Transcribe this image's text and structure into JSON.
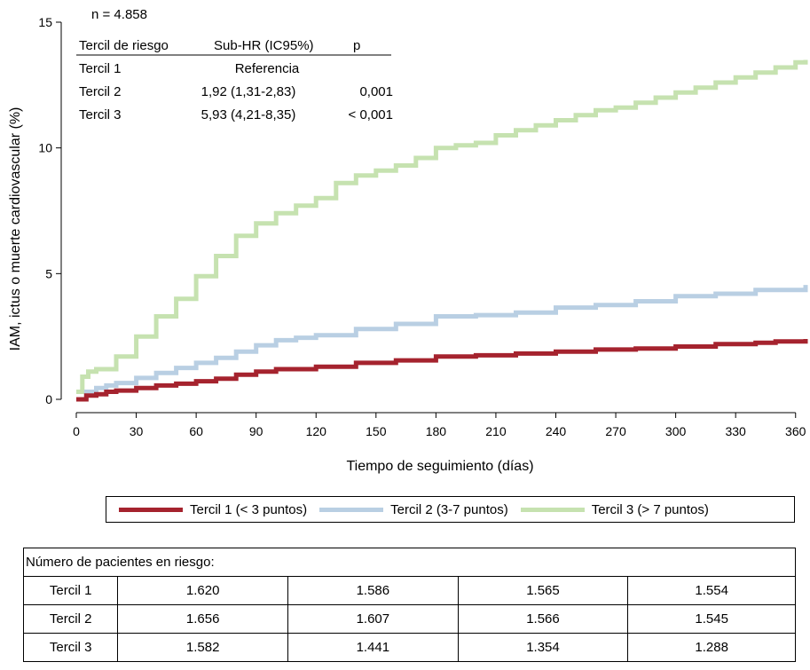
{
  "chart_data": {
    "type": "line",
    "title": "",
    "xlabel": "Tiempo de seguimiento (días)",
    "ylabel": "IAM, ictus o muerte cardiovascular (%)",
    "xlim": [
      0,
      365
    ],
    "ylim": [
      0,
      15
    ],
    "xticks": [
      0,
      30,
      60,
      90,
      120,
      150,
      180,
      210,
      240,
      270,
      300,
      330,
      360
    ],
    "yticks": [
      0,
      5,
      10,
      15
    ],
    "grid": false,
    "legend_position": "bottom",
    "series": [
      {
        "name": "Tercil 1 (< 3 puntos)",
        "color": "#a5232e",
        "x": [
          0,
          5,
          10,
          15,
          20,
          30,
          40,
          50,
          60,
          70,
          80,
          90,
          100,
          120,
          140,
          160,
          180,
          200,
          220,
          240,
          260,
          280,
          300,
          320,
          340,
          350,
          365
        ],
        "y": [
          0.0,
          0.15,
          0.2,
          0.3,
          0.35,
          0.45,
          0.55,
          0.62,
          0.72,
          0.82,
          0.98,
          1.1,
          1.2,
          1.3,
          1.45,
          1.55,
          1.7,
          1.75,
          1.82,
          1.9,
          1.98,
          2.02,
          2.1,
          2.2,
          2.25,
          2.3,
          2.4
        ]
      },
      {
        "name": "Tercil 2 (3-7 puntos)",
        "color": "#b9cfe3",
        "x": [
          0,
          5,
          10,
          15,
          20,
          30,
          40,
          50,
          60,
          70,
          80,
          90,
          100,
          110,
          120,
          140,
          160,
          180,
          200,
          220,
          240,
          260,
          280,
          300,
          320,
          340,
          365
        ],
        "y": [
          0.0,
          0.3,
          0.45,
          0.55,
          0.65,
          0.85,
          1.05,
          1.25,
          1.45,
          1.65,
          1.9,
          2.15,
          2.35,
          2.45,
          2.55,
          2.8,
          3.0,
          3.3,
          3.35,
          3.45,
          3.65,
          3.75,
          3.9,
          4.1,
          4.2,
          4.35,
          4.55
        ]
      },
      {
        "name": "Tercil 3 (> 7 puntos)",
        "color": "#c6e2b0",
        "x": [
          0,
          3,
          6,
          10,
          20,
          30,
          40,
          50,
          60,
          70,
          80,
          90,
          100,
          110,
          120,
          130,
          140,
          150,
          160,
          170,
          180,
          190,
          200,
          210,
          220,
          230,
          240,
          250,
          260,
          270,
          280,
          290,
          300,
          310,
          320,
          330,
          340,
          350,
          360,
          365
        ],
        "y": [
          0.3,
          0.9,
          1.1,
          1.2,
          1.7,
          2.5,
          3.3,
          4.0,
          4.9,
          5.7,
          6.5,
          7.0,
          7.4,
          7.7,
          8.0,
          8.6,
          8.9,
          9.1,
          9.3,
          9.6,
          10.0,
          10.1,
          10.2,
          10.5,
          10.7,
          10.9,
          11.1,
          11.3,
          11.5,
          11.6,
          11.8,
          12.0,
          12.2,
          12.4,
          12.6,
          12.8,
          13.0,
          13.2,
          13.4,
          13.5
        ]
      }
    ],
    "annotation": {
      "n_label": "n = 4.858",
      "headers": [
        "Tercil de riesgo",
        "Sub-HR (IC95%)",
        "p"
      ],
      "rows": [
        [
          "Tercil 1",
          "Referencia",
          ""
        ],
        [
          "Tercil 2",
          "1,92 (1,31-2,83)",
          "0,001"
        ],
        [
          "Tercil 3",
          "5,93 (4,21-8,35)",
          "< 0,001"
        ]
      ]
    }
  },
  "risk_table": {
    "title": "Número de pacientes en riesgo:",
    "rows": [
      {
        "label": "Tercil 1",
        "values": [
          "1.620",
          "1.586",
          "1.565",
          "1.554"
        ]
      },
      {
        "label": "Tercil 2",
        "values": [
          "1.656",
          "1.607",
          "1.566",
          "1.545"
        ]
      },
      {
        "label": "Tercil 3",
        "values": [
          "1.582",
          "1.441",
          "1.354",
          "1.288"
        ]
      }
    ]
  }
}
